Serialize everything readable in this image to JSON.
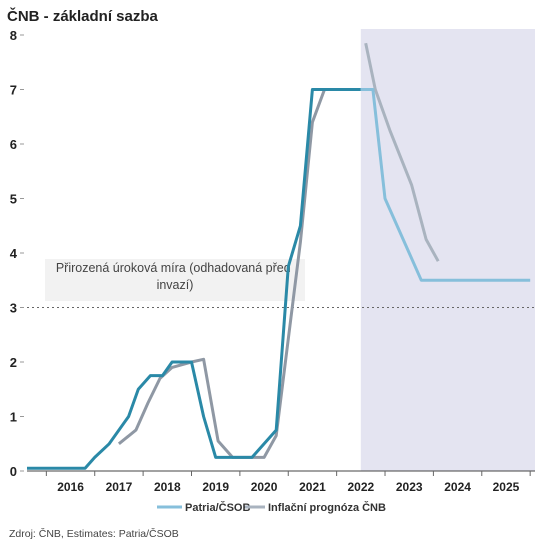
{
  "chart_data": {
    "type": "line",
    "title": "ČNB - základní sazba",
    "xlabel": "",
    "ylabel": "",
    "ylim": [
      0,
      8
    ],
    "xlim": [
      2015.6,
      2026.1
    ],
    "yticks": [
      "0",
      "1",
      "2",
      "3",
      "4",
      "5",
      "6",
      "7",
      "8"
    ],
    "xticks": [
      "2016",
      "2017",
      "2018",
      "2019",
      "2020",
      "2021",
      "2022",
      "2023",
      "2024",
      "2025"
    ],
    "grid": false,
    "legend_position": "bottom",
    "forecast_shading_from": 2022.5,
    "reference_line": {
      "y": 3,
      "style": "dashed"
    },
    "annotation": "Přirozená úroková míra (odhadovaná před invazí)",
    "series": [
      {
        "name": "Patria/ČSOB",
        "color": "#2a89a7",
        "forecast_color": "#86bfdb",
        "forecast_from": 2022.5,
        "points": [
          [
            2015.6,
            0.05
          ],
          [
            2016.8,
            0.05
          ],
          [
            2017.0,
            0.25
          ],
          [
            2017.3,
            0.5
          ],
          [
            2017.7,
            1.0
          ],
          [
            2017.9,
            1.5
          ],
          [
            2018.15,
            1.75
          ],
          [
            2018.4,
            1.75
          ],
          [
            2018.6,
            2.0
          ],
          [
            2019.0,
            2.0
          ],
          [
            2019.25,
            1.0
          ],
          [
            2019.5,
            0.25
          ],
          [
            2020.25,
            0.25
          ],
          [
            2020.75,
            0.75
          ],
          [
            2021.0,
            3.75
          ],
          [
            2021.25,
            4.5
          ],
          [
            2021.5,
            7.0
          ],
          [
            2022.5,
            7.0
          ],
          [
            2022.75,
            7.0
          ],
          [
            2023.0,
            5.0
          ],
          [
            2023.5,
            4.0
          ],
          [
            2023.75,
            3.5
          ],
          [
            2026.0,
            3.5
          ]
        ]
      },
      {
        "name": "Inflační prognóza ČNB",
        "color": "#8f98a4",
        "forecast_color": "#a9b3bf",
        "forecast_from": 2022.5,
        "points": [
          [
            2017.5,
            0.5
          ],
          [
            2017.85,
            0.75
          ],
          [
            2018.1,
            1.25
          ],
          [
            2018.35,
            1.7
          ],
          [
            2018.6,
            1.9
          ],
          [
            2019.0,
            2.0
          ],
          [
            2019.25,
            2.05
          ],
          [
            2019.55,
            0.55
          ],
          [
            2019.85,
            0.25
          ],
          [
            2020.5,
            0.25
          ],
          [
            2020.75,
            0.65
          ],
          [
            2021.25,
            4.2
          ],
          [
            2021.5,
            6.4
          ],
          [
            2021.75,
            7.0
          ],
          [
            2022.05,
            7.0
          ],
          [
            2022.6,
            7.85
          ],
          [
            2022.8,
            7.0
          ],
          [
            2023.1,
            6.25
          ],
          [
            2023.55,
            5.25
          ],
          [
            2023.85,
            4.25
          ],
          [
            2024.1,
            3.85
          ]
        ]
      }
    ]
  },
  "source": "Zdroj: ČNB, Estimates: Patria/ČSOB",
  "colors": {
    "forecast_band": "#e4e4f1",
    "annotation_box": "#f2f2f2",
    "axis": "#444444"
  }
}
